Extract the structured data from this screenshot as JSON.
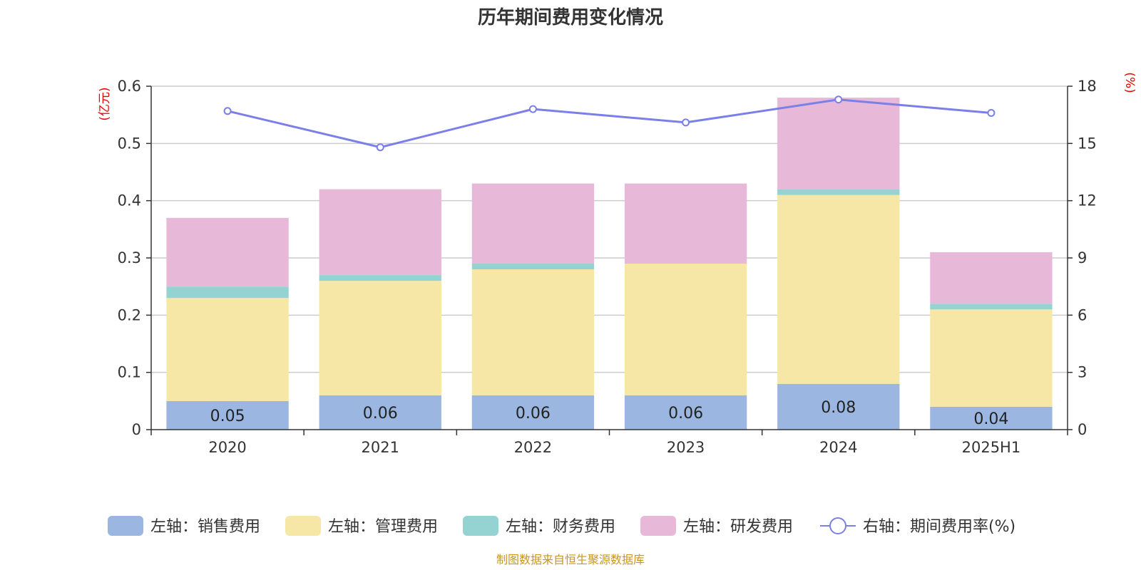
{
  "chart_data": {
    "type": "bar",
    "title": "历年期间费用变化情况",
    "categories": [
      "2020",
      "2021",
      "2022",
      "2023",
      "2024",
      "2025H1"
    ],
    "series": [
      {
        "name": "左轴：销售费用",
        "axis": "left",
        "kind": "stacked-bar",
        "color": "#9bb6e0",
        "values": [
          0.05,
          0.06,
          0.06,
          0.06,
          0.08,
          0.04
        ],
        "data_labels": [
          "0.05",
          "0.06",
          "0.06",
          "0.06",
          "0.08",
          "0.04"
        ]
      },
      {
        "name": "左轴：管理费用",
        "axis": "left",
        "kind": "stacked-bar",
        "color": "#f7e7a6",
        "values": [
          0.18,
          0.2,
          0.22,
          0.23,
          0.33,
          0.17
        ]
      },
      {
        "name": "左轴：财务费用",
        "axis": "left",
        "kind": "stacked-bar",
        "color": "#95d3d3",
        "values": [
          0.02,
          0.01,
          0.01,
          0.0,
          0.01,
          0.01
        ]
      },
      {
        "name": "左轴：研发费用",
        "axis": "left",
        "kind": "stacked-bar",
        "color": "#e8b8d8",
        "values": [
          0.12,
          0.15,
          0.14,
          0.14,
          0.16,
          0.09
        ]
      },
      {
        "name": "右轴：期间费用率(%)",
        "axis": "right",
        "kind": "line",
        "color": "#7b7fe8",
        "values": [
          16.7,
          14.8,
          16.8,
          16.1,
          17.3,
          16.6
        ]
      }
    ],
    "y_left": {
      "unit": "(亿元)",
      "range": [
        0,
        0.6
      ],
      "ticks": [
        "0",
        "0.1",
        "0.2",
        "0.3",
        "0.4",
        "0.5",
        "0.6"
      ]
    },
    "y_right": {
      "unit": "(%)",
      "range": [
        0,
        18
      ],
      "ticks": [
        "0",
        "3",
        "6",
        "9",
        "12",
        "15",
        "18"
      ]
    },
    "grid": true,
    "legend_position": "bottom",
    "axis_unit_color": "#e60000",
    "source": "制图数据来自恒生聚源数据库",
    "source_color": "#c8961e"
  }
}
